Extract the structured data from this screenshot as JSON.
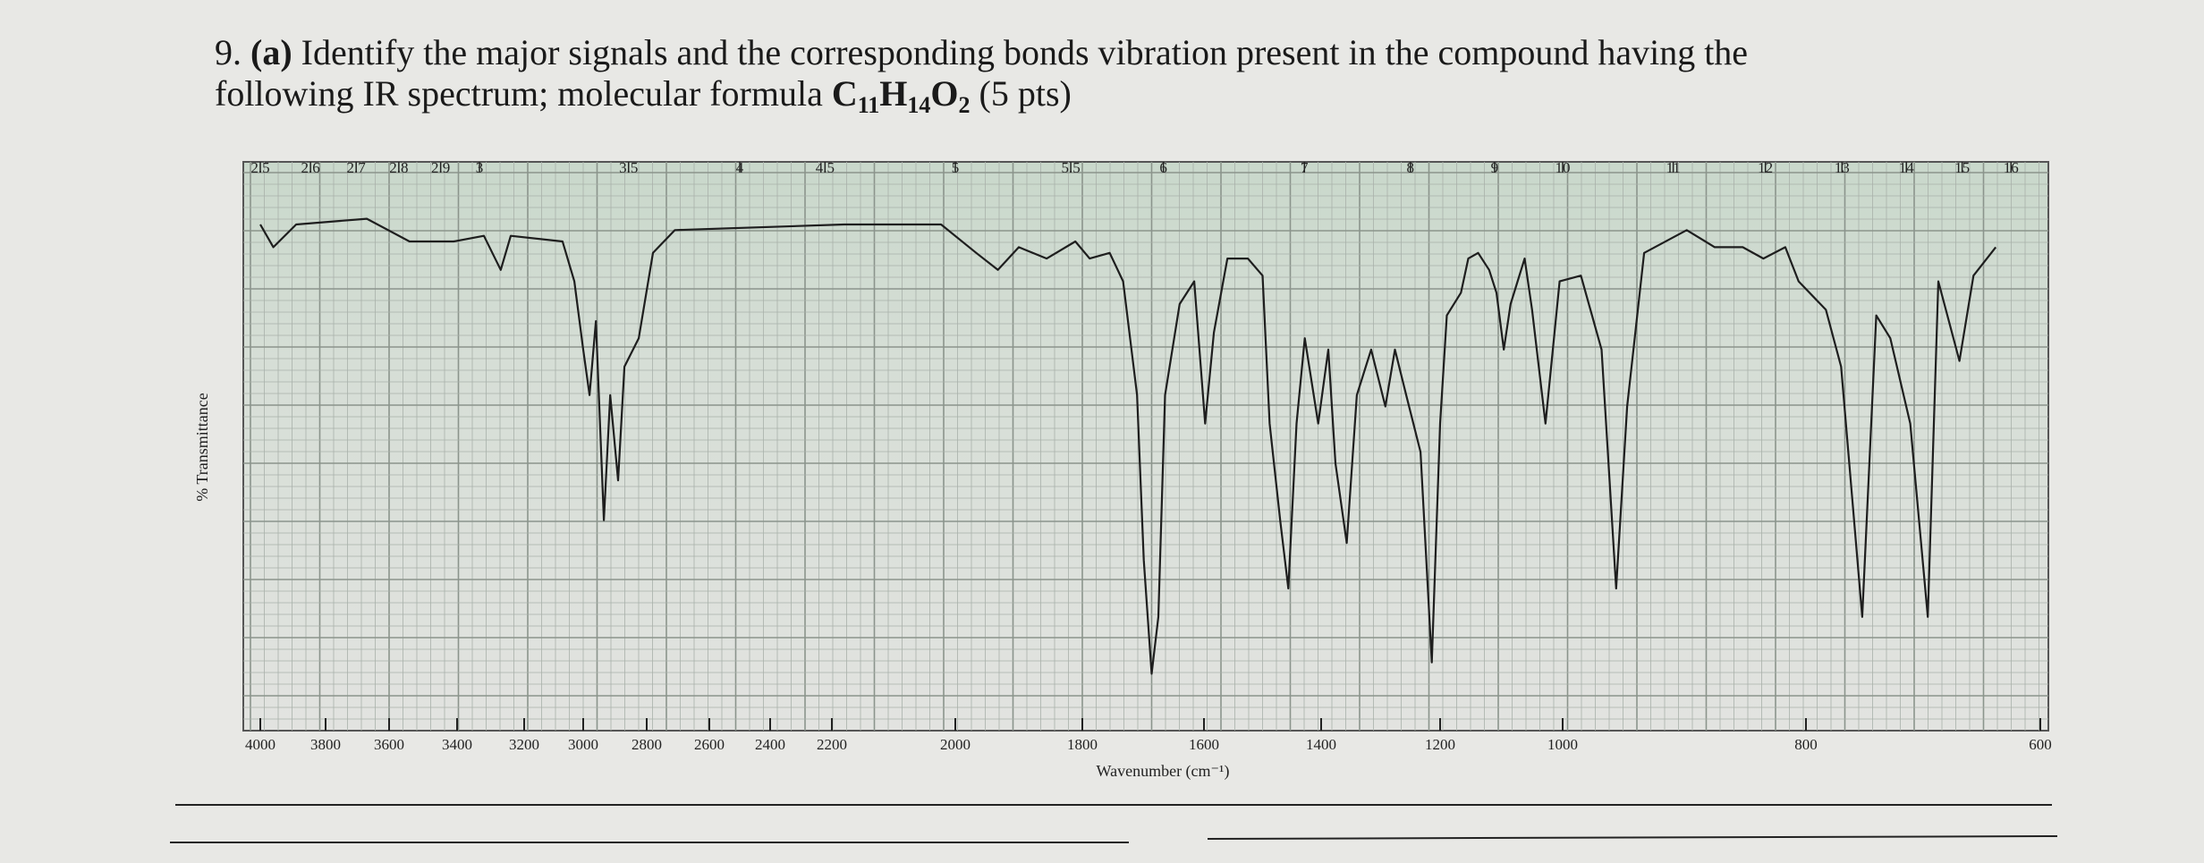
{
  "question": {
    "number": "9.",
    "part": "(a)",
    "line1": "Identify the major signals and the corresponding bonds vibration present in the compound having the",
    "line2": "following IR spectrum; molecular formula",
    "formula": [
      {
        "symbol": "C",
        "count": "11"
      },
      {
        "symbol": "H",
        "count": "14"
      },
      {
        "symbol": "O",
        "count": "2"
      }
    ],
    "points": "(5 pts)"
  },
  "chart_data": {
    "type": "line",
    "x_label": "Wavenumber (cm⁻¹)",
    "y_label": "% Transmittance",
    "xlim": [
      4000,
      600
    ],
    "ylim": [
      0,
      100
    ],
    "xticks": [
      4000,
      3800,
      3600,
      3400,
      3200,
      3000,
      2800,
      2600,
      2400,
      2200,
      2000,
      1800,
      1600,
      1400,
      1200,
      1000,
      800,
      600
    ],
    "x2ticks": [
      2.5,
      2.6,
      2.7,
      2.8,
      2.9,
      3,
      3.5,
      4,
      4.5,
      5,
      5.5,
      6,
      7,
      8,
      9,
      10,
      11,
      12,
      13,
      14,
      15,
      16
    ],
    "grid": true,
    "color": "#1e1e1e",
    "x": [
      4000,
      3960,
      3890,
      3670,
      3540,
      3410,
      3320,
      3270,
      3240,
      3070,
      3030,
      3000,
      2980,
      2960,
      2935,
      2915,
      2890,
      2870,
      2825,
      2780,
      2710,
      2180,
      2023,
      1967,
      1933,
      1900,
      1856,
      1811,
      1788,
      1755,
      1733,
      1710,
      1699,
      1686,
      1675,
      1664,
      1640,
      1616,
      1598,
      1583,
      1560,
      1525,
      1500,
      1488,
      1470,
      1456,
      1442,
      1428,
      1405,
      1388,
      1376,
      1357,
      1340,
      1316,
      1292,
      1276,
      1257,
      1233,
      1214,
      1200,
      1189,
      1166,
      1154,
      1138,
      1120,
      1108,
      1096,
      1085,
      1062,
      1050,
      1028,
      1005,
      985,
      968,
      956,
      947,
      933,
      898,
      875,
      852,
      835,
      817,
      806,
      783,
      770,
      752,
      740,
      728,
      711,
      696,
      687,
      669,
      657,
      638
    ],
    "values": [
      89,
      85,
      89,
      90,
      86,
      86,
      87,
      81,
      87,
      86,
      79,
      67,
      59,
      72,
      37,
      59,
      44,
      64,
      69,
      84,
      88,
      89,
      89,
      84,
      81,
      85,
      83,
      86,
      83,
      84,
      79,
      59,
      30,
      10,
      20,
      59,
      75,
      79,
      54,
      70,
      83,
      83,
      80,
      54,
      37,
      25,
      54,
      69,
      54,
      67,
      47,
      33,
      59,
      67,
      57,
      67,
      59,
      49,
      12,
      54,
      73,
      77,
      83,
      84,
      81,
      77,
      67,
      75,
      83,
      74,
      54,
      79,
      80,
      67,
      25,
      57,
      84,
      88,
      85,
      85,
      83,
      85,
      79,
      74,
      64,
      20,
      73,
      69,
      54,
      20,
      79,
      65,
      80,
      85
    ]
  }
}
